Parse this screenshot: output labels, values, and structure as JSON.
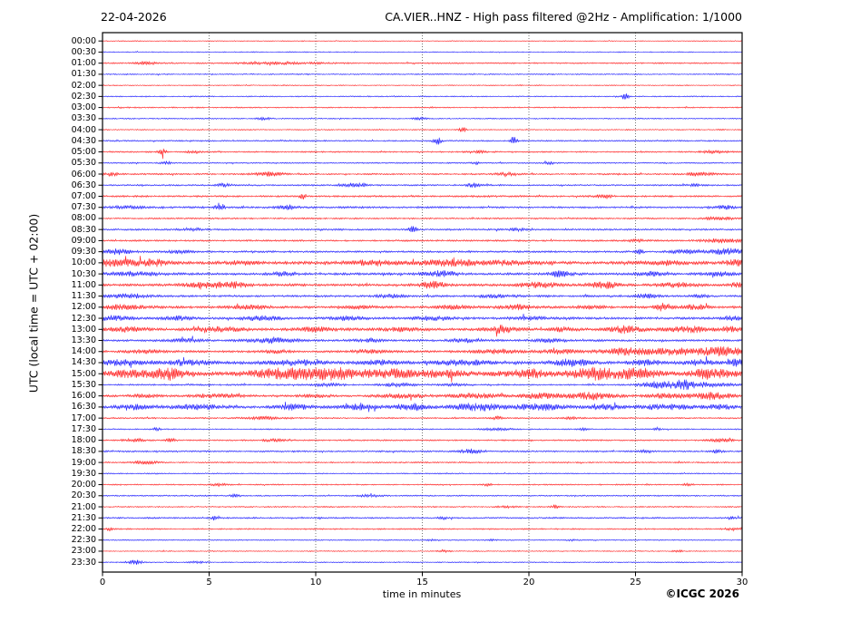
{
  "header": {
    "date": "22-04-2026",
    "title": "CA.VIER..HNZ - High pass filtered @2Hz - Amplification: 1/1000"
  },
  "axes": {
    "ylabel": "UTC (local time = UTC + 02:00)",
    "xlabel": "time in minutes",
    "x_tick_labels": [
      "0",
      "5",
      "10",
      "15",
      "20",
      "25",
      "30"
    ],
    "x_ticks": [
      0,
      5,
      10,
      15,
      20,
      25,
      30
    ],
    "grid_minutes": [
      5,
      10,
      15,
      20,
      25
    ],
    "x_range": [
      0,
      30
    ]
  },
  "footer": {
    "copyright": "©ICGC 2026"
  },
  "colors": {
    "trace_red": "#ff0000",
    "trace_blue": "#0000ff",
    "frame": "#000000",
    "grid": "#555555",
    "background": "#ffffff"
  },
  "chart_data": {
    "type": "line",
    "subtype": "helicorder-seismogram",
    "title": "CA.VIER..HNZ - High pass filtered @2Hz - Amplification: 1/1000",
    "xlabel": "time in minutes",
    "ylabel": "UTC (local time = UTC + 02:00)",
    "x_range": [
      0,
      30
    ],
    "row_interval_minutes": 30,
    "grid": "dotted-vertical-5min",
    "legend": "none",
    "rows": [
      {
        "t": "00:00",
        "c": "red",
        "a": 0.35,
        "e": []
      },
      {
        "t": "00:30",
        "c": "blue",
        "a": 0.5,
        "e": []
      },
      {
        "t": "01:00",
        "c": "red",
        "a": 0.65,
        "e": [
          [
            2.0,
            1.3,
            0.3
          ],
          [
            8.5,
            0.9,
            1.5
          ]
        ]
      },
      {
        "t": "01:30",
        "c": "blue",
        "a": 0.6,
        "e": []
      },
      {
        "t": "02:00",
        "c": "red",
        "a": 0.45,
        "e": []
      },
      {
        "t": "02:30",
        "c": "blue",
        "a": 0.55,
        "e": [
          [
            24.5,
            3.2,
            0.12
          ]
        ]
      },
      {
        "t": "03:00",
        "c": "red",
        "a": 0.6,
        "e": []
      },
      {
        "t": "03:30",
        "c": "blue",
        "a": 0.55,
        "e": [
          [
            7.5,
            1.1,
            0.25
          ],
          [
            14.8,
            1.3,
            0.25
          ]
        ]
      },
      {
        "t": "04:00",
        "c": "red",
        "a": 0.55,
        "e": [
          [
            16.9,
            2.8,
            0.1
          ]
        ]
      },
      {
        "t": "04:30",
        "c": "blue",
        "a": 0.7,
        "e": [
          [
            15.7,
            4.2,
            0.12
          ],
          [
            19.3,
            6.5,
            0.1
          ]
        ]
      },
      {
        "t": "05:00",
        "c": "red",
        "a": 0.7,
        "e": [
          [
            2.8,
            3.3,
            0.12
          ],
          [
            4.3,
            1.4,
            0.2
          ],
          [
            17.5,
            1.2,
            0.3
          ],
          [
            28.7,
            1.3,
            0.4
          ]
        ]
      },
      {
        "t": "05:30",
        "c": "blue",
        "a": 0.65,
        "e": [
          [
            3.0,
            1.3,
            0.2
          ],
          [
            17.5,
            1.8,
            0.12
          ],
          [
            21.0,
            1.1,
            0.2
          ]
        ]
      },
      {
        "t": "06:00",
        "c": "red",
        "a": 0.75,
        "e": [
          [
            0.5,
            1.5,
            0.3
          ],
          [
            7.8,
            1.8,
            0.5
          ],
          [
            19.0,
            1.3,
            0.4
          ],
          [
            28.0,
            1.3,
            0.5
          ]
        ]
      },
      {
        "t": "06:30",
        "c": "blue",
        "a": 0.75,
        "e": [
          [
            5.7,
            1.6,
            0.25
          ],
          [
            11.9,
            2.0,
            0.35
          ],
          [
            17.4,
            2.2,
            0.25
          ],
          [
            27.8,
            1.2,
            0.3
          ]
        ]
      },
      {
        "t": "07:00",
        "c": "red",
        "a": 0.85,
        "e": [
          [
            9.4,
            2.8,
            0.12
          ],
          [
            23.5,
            1.1,
            0.4
          ]
        ]
      },
      {
        "t": "07:30",
        "c": "blue",
        "a": 0.95,
        "e": [
          [
            1.2,
            1.4,
            0.5
          ],
          [
            5.5,
            3.8,
            0.15
          ],
          [
            8.7,
            1.8,
            0.3
          ],
          [
            29.2,
            1.7,
            0.3
          ]
        ]
      },
      {
        "t": "08:00",
        "c": "red",
        "a": 0.75,
        "e": [
          [
            29.0,
            1.4,
            0.5
          ]
        ]
      },
      {
        "t": "08:30",
        "c": "blue",
        "a": 0.85,
        "e": [
          [
            4.2,
            1.4,
            0.35
          ],
          [
            14.5,
            4.2,
            0.12
          ],
          [
            19.5,
            1.1,
            0.3
          ]
        ]
      },
      {
        "t": "09:00",
        "c": "red",
        "a": 0.85,
        "e": [
          [
            25.0,
            1.4,
            0.25
          ],
          [
            29.0,
            1.7,
            0.6
          ]
        ]
      },
      {
        "t": "09:30",
        "c": "blue",
        "a": 0.95,
        "e": [
          [
            0.7,
            2.2,
            0.5
          ],
          [
            3.5,
            1.4,
            0.4
          ],
          [
            25.2,
            2.8,
            0.12
          ],
          [
            27.3,
            1.8,
            0.5
          ],
          [
            29.3,
            2.8,
            0.6
          ]
        ]
      },
      {
        "t": "10:00",
        "c": "red",
        "a": 1.5,
        "e": [
          [
            0.5,
            2.8,
            0.8
          ],
          [
            2.5,
            2.6,
            0.6
          ],
          [
            6.5,
            1.8,
            0.5
          ],
          [
            12.8,
            2.8,
            0.8
          ],
          [
            16.2,
            3.2,
            0.9
          ],
          [
            19.0,
            1.8,
            1.0
          ],
          [
            26.5,
            1.8,
            0.8
          ],
          [
            29.7,
            2.4,
            0.4
          ]
        ]
      },
      {
        "t": "10:30",
        "c": "blue",
        "a": 1.15,
        "e": [
          [
            1.5,
            1.8,
            0.8
          ],
          [
            8.5,
            1.6,
            0.4
          ],
          [
            15.8,
            2.3,
            0.6
          ],
          [
            21.5,
            2.8,
            0.4
          ],
          [
            25.8,
            1.8,
            0.5
          ],
          [
            29.0,
            1.7,
            0.5
          ]
        ]
      },
      {
        "t": "11:00",
        "c": "red",
        "a": 1.2,
        "e": [
          [
            4.8,
            2.3,
            0.7
          ],
          [
            6.2,
            2.8,
            0.5
          ],
          [
            15.5,
            3.2,
            0.4
          ],
          [
            20.5,
            2.8,
            0.6
          ],
          [
            23.5,
            3.2,
            0.5
          ],
          [
            27.0,
            1.8,
            0.6
          ],
          [
            29.8,
            2.3,
            0.3
          ]
        ]
      },
      {
        "t": "11:30",
        "c": "blue",
        "a": 1.0,
        "e": [
          [
            1.2,
            1.8,
            0.6
          ],
          [
            13.5,
            1.4,
            0.5
          ],
          [
            18.5,
            1.4,
            0.6
          ],
          [
            25.5,
            2.0,
            0.4
          ],
          [
            28.0,
            1.4,
            0.3
          ]
        ]
      },
      {
        "t": "12:00",
        "c": "red",
        "a": 1.15,
        "e": [
          [
            1.0,
            1.8,
            0.8
          ],
          [
            7.0,
            1.6,
            0.6
          ],
          [
            12.0,
            1.6,
            0.5
          ],
          [
            16.5,
            1.8,
            0.5
          ],
          [
            19.5,
            2.0,
            0.6
          ],
          [
            23.0,
            1.4,
            0.5
          ],
          [
            26.3,
            3.8,
            0.25
          ],
          [
            27.8,
            2.2,
            0.5
          ]
        ]
      },
      {
        "t": "12:30",
        "c": "blue",
        "a": 1.15,
        "e": [
          [
            0.5,
            2.2,
            0.6
          ],
          [
            3.5,
            1.8,
            0.5
          ],
          [
            7.5,
            1.8,
            0.6
          ],
          [
            11.5,
            1.8,
            0.5
          ],
          [
            15.5,
            1.6,
            0.6
          ],
          [
            20.0,
            1.4,
            0.5
          ],
          [
            29.5,
            1.7,
            0.4
          ]
        ]
      },
      {
        "t": "13:00",
        "c": "red",
        "a": 1.3,
        "e": [
          [
            1.0,
            1.8,
            0.7
          ],
          [
            5.5,
            2.0,
            0.8
          ],
          [
            10.0,
            1.8,
            0.6
          ],
          [
            14.0,
            1.6,
            0.6
          ],
          [
            18.8,
            2.8,
            0.6
          ],
          [
            21.5,
            1.8,
            0.5
          ],
          [
            24.5,
            3.2,
            0.5
          ],
          [
            27.5,
            2.8,
            0.8
          ],
          [
            29.5,
            2.3,
            0.4
          ]
        ]
      },
      {
        "t": "13:30",
        "c": "blue",
        "a": 1.0,
        "e": [
          [
            4.0,
            1.8,
            0.5
          ],
          [
            8.0,
            2.2,
            0.8
          ],
          [
            12.5,
            1.4,
            0.5
          ],
          [
            17.0,
            1.8,
            0.6
          ],
          [
            21.0,
            1.4,
            0.5
          ]
        ]
      },
      {
        "t": "14:00",
        "c": "red",
        "a": 1.1,
        "e": [
          [
            2.0,
            1.4,
            0.6
          ],
          [
            8.0,
            1.4,
            0.5
          ],
          [
            12.5,
            1.4,
            0.5
          ],
          [
            18.5,
            1.8,
            0.8
          ],
          [
            21.5,
            1.8,
            0.6
          ],
          [
            24.5,
            2.8,
            0.8
          ],
          [
            27.0,
            3.2,
            1.0
          ],
          [
            29.3,
            3.8,
            0.7
          ]
        ]
      },
      {
        "t": "14:30",
        "c": "blue",
        "a": 1.5,
        "e": [
          [
            1.0,
            2.2,
            0.8
          ],
          [
            4.0,
            2.2,
            0.6
          ],
          [
            9.0,
            2.2,
            0.8
          ],
          [
            13.0,
            2.2,
            0.6
          ],
          [
            17.0,
            2.8,
            0.8
          ],
          [
            22.0,
            3.2,
            0.6
          ],
          [
            25.5,
            2.2,
            0.5
          ],
          [
            28.0,
            2.2,
            0.5
          ],
          [
            29.8,
            3.2,
            0.3
          ]
        ]
      },
      {
        "t": "15:00",
        "c": "red",
        "a": 2.0,
        "e": [
          [
            1.5,
            2.8,
            0.8
          ],
          [
            3.2,
            4.8,
            0.5
          ],
          [
            8.5,
            4.2,
            1.2
          ],
          [
            11.0,
            4.2,
            1.0
          ],
          [
            13.5,
            3.8,
            0.8
          ],
          [
            16.0,
            2.8,
            0.8
          ],
          [
            20.0,
            3.2,
            0.8
          ],
          [
            23.0,
            4.8,
            0.8
          ],
          [
            25.0,
            3.8,
            0.8
          ],
          [
            28.5,
            3.2,
            0.8
          ]
        ]
      },
      {
        "t": "15:30",
        "c": "blue",
        "a": 0.8,
        "e": [
          [
            10.5,
            1.4,
            0.4
          ],
          [
            13.8,
            1.8,
            0.5
          ],
          [
            16.5,
            1.1,
            0.5
          ],
          [
            26.0,
            2.8,
            0.5
          ],
          [
            27.2,
            3.8,
            0.4
          ],
          [
            28.5,
            2.2,
            0.8
          ]
        ]
      },
      {
        "t": "16:00",
        "c": "red",
        "a": 1.0,
        "e": [
          [
            2.0,
            1.4,
            0.5
          ],
          [
            5.5,
            1.8,
            0.8
          ],
          [
            10.0,
            1.4,
            0.5
          ],
          [
            14.0,
            1.8,
            0.8
          ],
          [
            17.5,
            2.2,
            0.8
          ],
          [
            20.5,
            2.2,
            0.7
          ],
          [
            23.0,
            3.2,
            0.8
          ],
          [
            26.5,
            2.8,
            0.6
          ],
          [
            28.5,
            3.2,
            0.7
          ]
        ]
      },
      {
        "t": "16:30",
        "c": "blue",
        "a": 1.3,
        "e": [
          [
            1.5,
            1.8,
            0.6
          ],
          [
            4.5,
            2.2,
            0.8
          ],
          [
            9.0,
            2.2,
            0.6
          ],
          [
            12.0,
            2.2,
            0.6
          ],
          [
            14.5,
            2.8,
            0.6
          ],
          [
            17.5,
            3.2,
            0.8
          ],
          [
            20.5,
            2.8,
            0.8
          ],
          [
            23.5,
            2.2,
            0.6
          ],
          [
            26.5,
            2.2,
            0.8
          ],
          [
            29.0,
            1.8,
            0.5
          ]
        ]
      },
      {
        "t": "17:00",
        "c": "red",
        "a": 0.7,
        "e": [
          [
            7.5,
            1.3,
            0.5
          ],
          [
            18.5,
            1.8,
            0.15
          ],
          [
            22.0,
            1.1,
            0.3
          ]
        ]
      },
      {
        "t": "17:30",
        "c": "blue",
        "a": 0.6,
        "e": [
          [
            2.5,
            1.6,
            0.15
          ],
          [
            18.5,
            1.1,
            0.5
          ],
          [
            22.5,
            1.3,
            0.15
          ],
          [
            26.0,
            1.1,
            0.15
          ]
        ]
      },
      {
        "t": "18:00",
        "c": "red",
        "a": 0.7,
        "e": [
          [
            1.5,
            1.3,
            0.4
          ],
          [
            3.2,
            1.6,
            0.15
          ],
          [
            8.0,
            1.1,
            0.4
          ],
          [
            29.0,
            1.3,
            0.4
          ]
        ]
      },
      {
        "t": "18:30",
        "c": "blue",
        "a": 0.8,
        "e": [
          [
            17.3,
            2.2,
            0.3
          ],
          [
            25.5,
            1.3,
            0.2
          ],
          [
            28.8,
            1.6,
            0.2
          ]
        ]
      },
      {
        "t": "19:00",
        "c": "red",
        "a": 0.65,
        "e": [
          [
            2.0,
            1.3,
            0.4
          ]
        ]
      },
      {
        "t": "19:30",
        "c": "blue",
        "a": 0.55,
        "e": []
      },
      {
        "t": "20:00",
        "c": "red",
        "a": 0.6,
        "e": [
          [
            5.5,
            1.1,
            0.3
          ],
          [
            18.0,
            1.1,
            0.2
          ],
          [
            27.5,
            1.1,
            0.2
          ]
        ]
      },
      {
        "t": "20:30",
        "c": "blue",
        "a": 0.65,
        "e": [
          [
            6.2,
            1.4,
            0.15
          ],
          [
            12.5,
            0.9,
            0.4
          ]
        ]
      },
      {
        "t": "21:00",
        "c": "red",
        "a": 0.6,
        "e": [
          [
            19.0,
            0.9,
            0.3
          ],
          [
            21.2,
            2.3,
            0.12
          ]
        ]
      },
      {
        "t": "21:30",
        "c": "blue",
        "a": 0.75,
        "e": [
          [
            5.3,
            2.8,
            0.12
          ],
          [
            16.0,
            1.3,
            0.2
          ],
          [
            29.5,
            1.1,
            0.2
          ]
        ]
      },
      {
        "t": "22:00",
        "c": "red",
        "a": 0.65,
        "e": [
          [
            0.3,
            1.4,
            0.15
          ],
          [
            29.5,
            1.4,
            0.25
          ]
        ]
      },
      {
        "t": "22:30",
        "c": "blue",
        "a": 0.5,
        "e": [
          [
            15.5,
            0.9,
            0.2
          ],
          [
            18.3,
            0.9,
            0.2
          ],
          [
            22.0,
            0.8,
            0.2
          ]
        ]
      },
      {
        "t": "23:00",
        "c": "red",
        "a": 0.5,
        "e": [
          [
            16.0,
            0.9,
            0.2
          ],
          [
            27.0,
            0.8,
            0.2
          ]
        ]
      },
      {
        "t": "23:30",
        "c": "blue",
        "a": 0.5,
        "e": [
          [
            1.5,
            2.2,
            0.25
          ],
          [
            4.5,
            0.9,
            0.3
          ]
        ]
      }
    ],
    "rows_note_units": "a = background amplitude (px half-height); e = events [minute, extra amplitude px, width minutes]"
  }
}
